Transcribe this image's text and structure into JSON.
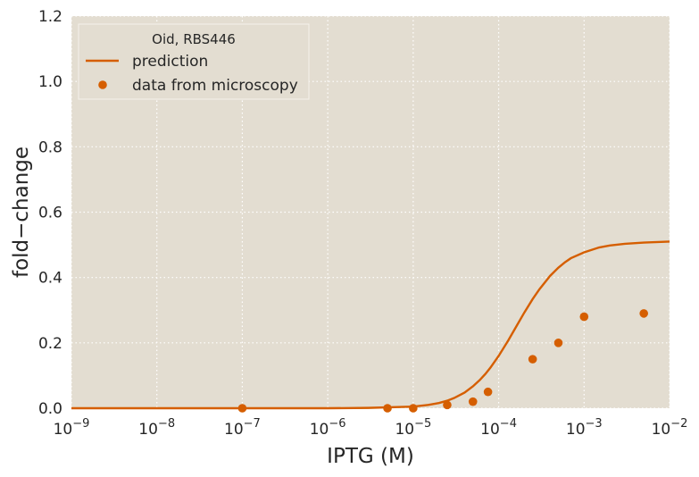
{
  "chart_data": {
    "type": "scatter",
    "xlabel": "IPTG (M)",
    "ylabel": "fold−change",
    "x_scale": "log",
    "xlim": [
      1e-09,
      0.01
    ],
    "ylim": [
      0,
      1.2
    ],
    "grid": true,
    "x_ticks": [
      {
        "value": 1e-09,
        "base": "10",
        "exp": "−9"
      },
      {
        "value": 1e-08,
        "base": "10",
        "exp": "−8"
      },
      {
        "value": 1e-07,
        "base": "10",
        "exp": "−7"
      },
      {
        "value": 1e-06,
        "base": "10",
        "exp": "−6"
      },
      {
        "value": 1e-05,
        "base": "10",
        "exp": "−5"
      },
      {
        "value": 0.0001,
        "base": "10",
        "exp": "−4"
      },
      {
        "value": 0.001,
        "base": "10",
        "exp": "−3"
      },
      {
        "value": 0.01,
        "base": "10",
        "exp": "−2"
      }
    ],
    "y_ticks": [
      {
        "value": 0.0,
        "label": "0.0"
      },
      {
        "value": 0.2,
        "label": "0.2"
      },
      {
        "value": 0.4,
        "label": "0.4"
      },
      {
        "value": 0.6,
        "label": "0.6"
      },
      {
        "value": 0.8,
        "label": "0.8"
      },
      {
        "value": 1.0,
        "label": "1.0"
      },
      {
        "value": 1.2,
        "label": "1.2"
      }
    ],
    "legend": {
      "title": "Oid, RBS446",
      "placement": "top-left"
    },
    "series": [
      {
        "name": "prediction",
        "kind": "line",
        "color": "#d55e00",
        "x": [
          1e-09,
          3e-09,
          1e-08,
          3e-08,
          1e-07,
          3e-07,
          1e-06,
          3e-06,
          1e-05,
          1.5e-05,
          2e-05,
          2.5e-05,
          3e-05,
          4e-05,
          5e-05,
          6e-05,
          7e-05,
          8e-05,
          0.0001,
          0.00013,
          0.00016,
          0.0002,
          0.00025,
          0.0003,
          0.0004,
          0.0005,
          0.0006,
          0.0007,
          0.001,
          0.0015,
          0.002,
          0.003,
          0.005,
          0.01
        ],
        "y": [
          0.0,
          0.0,
          0.0,
          0.0,
          0.0,
          0.0,
          0.0,
          0.001,
          0.005,
          0.01,
          0.016,
          0.023,
          0.031,
          0.048,
          0.067,
          0.086,
          0.105,
          0.124,
          0.16,
          0.208,
          0.249,
          0.293,
          0.334,
          0.364,
          0.405,
          0.43,
          0.447,
          0.459,
          0.477,
          0.492,
          0.498,
          0.503,
          0.507,
          0.51
        ]
      },
      {
        "name": "data from microscopy",
        "kind": "scatter",
        "color": "#d55e00",
        "x": [
          1e-07,
          5e-06,
          1e-05,
          2.5e-05,
          5e-05,
          7.5e-05,
          0.00025,
          0.0005,
          0.001,
          0.005
        ],
        "y": [
          0.0,
          0.0,
          0.0,
          0.01,
          0.02,
          0.05,
          0.15,
          0.2,
          0.28,
          0.29
        ]
      }
    ],
    "colors": {
      "plot_background": "#e3ddd1",
      "grid": "#ffffff",
      "series": "#d55e00"
    }
  }
}
